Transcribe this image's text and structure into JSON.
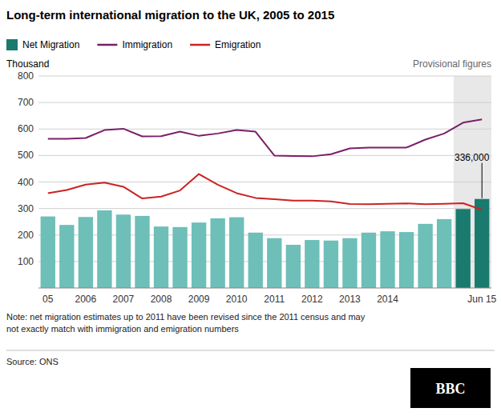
{
  "chart_data": {
    "type": "bar",
    "title": "Long-term international migration to the UK, 2005 to 2015",
    "y_label": "Thousand",
    "categories": [
      "05",
      null,
      "2006",
      null,
      "2007",
      null,
      "2008",
      null,
      "2009",
      null,
      "2010",
      null,
      "2011",
      null,
      "2012",
      null,
      "2013",
      null,
      "2014",
      null,
      null,
      null,
      null,
      "Jun 15"
    ],
    "series": [
      {
        "name": "Net Migration",
        "type": "bar",
        "color": "#1a7a6e",
        "colors": [
          "#6dbfb8",
          "#6dbfb8",
          "#6dbfb8",
          "#6dbfb8",
          "#6dbfb8",
          "#6dbfb8",
          "#6dbfb8",
          "#6dbfb8",
          "#6dbfb8",
          "#6dbfb8",
          "#6dbfb8",
          "#6dbfb8",
          "#6dbfb8",
          "#6dbfb8",
          "#6dbfb8",
          "#6dbfb8",
          "#6dbfb8",
          "#6dbfb8",
          "#6dbfb8",
          "#6dbfb8",
          "#6dbfb8",
          "#6dbfb8",
          "#1a7a6e",
          "#1a7a6e"
        ],
        "values": [
          270,
          238,
          268,
          293,
          277,
          272,
          232,
          230,
          247,
          263,
          267,
          209,
          188,
          163,
          181,
          179,
          188,
          209,
          214,
          211,
          242,
          260,
          298,
          336
        ]
      },
      {
        "name": "Immigration",
        "type": "line",
        "color": "#7b1f6a",
        "values": [
          563,
          563,
          566,
          596,
          601,
          572,
          573,
          590,
          574,
          583,
          596,
          590,
          500,
          498,
          497,
          505,
          527,
          530,
          530,
          530,
          560,
          583,
          624,
          636
        ]
      },
      {
        "name": "Emigration",
        "type": "line",
        "color": "#cc2222",
        "values": [
          358,
          370,
          390,
          398,
          382,
          338,
          345,
          368,
          430,
          390,
          358,
          340,
          335,
          330,
          330,
          327,
          317,
          316,
          318,
          319,
          316,
          318,
          320,
          295
        ]
      }
    ],
    "ylim": [
      0,
      800
    ],
    "yticks": [
      100,
      200,
      300,
      400,
      500,
      600,
      700,
      800
    ],
    "grid": true,
    "legend": "top",
    "annotations": [
      {
        "text": "336,000",
        "series": 0,
        "index": 23
      }
    ],
    "shaded": {
      "label": "Provisional figures",
      "from_index": 22
    },
    "note": "Note: net migration estimates up to 2011 have been revised since the 2011 census and may\nnot exactly match with immigration and emigration numbers",
    "source": "Source: ONS",
    "logo": "BBC"
  }
}
